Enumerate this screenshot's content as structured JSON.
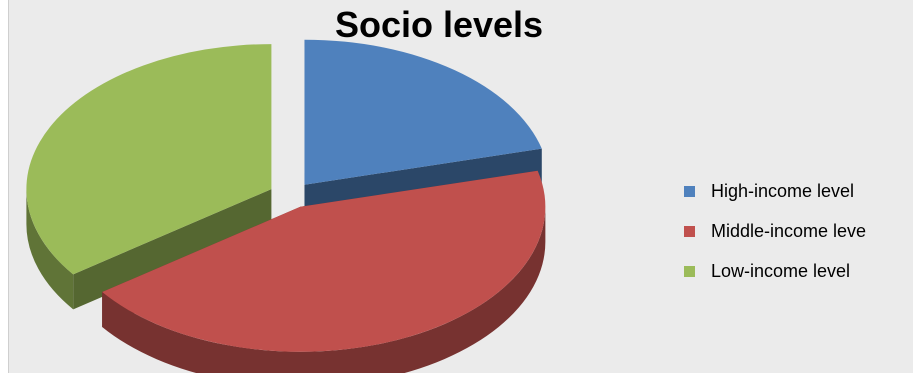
{
  "chart_data": {
    "type": "pie",
    "style": "3d-exploded",
    "title": "Socio levels",
    "categories": [
      "High-income level",
      "Middle-income level",
      "Low-income level"
    ],
    "values": [
      21,
      44,
      35
    ],
    "colors": [
      "#4f81bd",
      "#c0504d",
      "#9bbb59"
    ],
    "legend": {
      "position": "right",
      "labels": [
        "High-income level",
        "Middle-income leve",
        "Low-income level"
      ]
    }
  }
}
